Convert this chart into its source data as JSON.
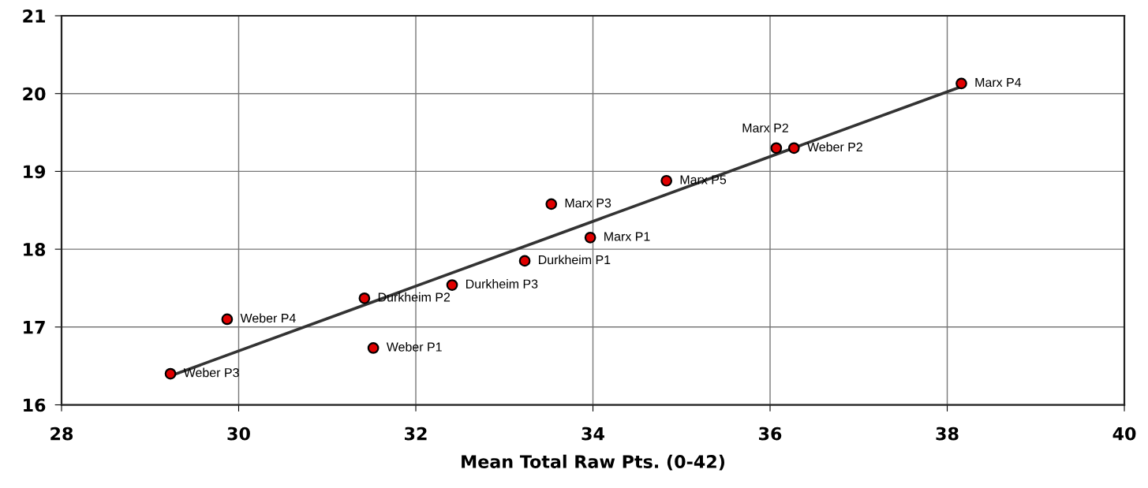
{
  "chart_data": {
    "type": "scatter",
    "xlabel": "Mean Total Raw Pts. (0-42)",
    "xlim": [
      28,
      40
    ],
    "xticks": [
      28,
      30,
      32,
      34,
      36,
      38,
      40
    ],
    "ylim": [
      16,
      21
    ],
    "yticks": [
      16,
      17,
      18,
      19,
      20,
      21
    ],
    "grid": true,
    "legend": false,
    "marker": "circle",
    "series": [
      {
        "color": "#e00000",
        "x": [
          29.23,
          29.87,
          31.42,
          31.52,
          32.41,
          33.23,
          33.53,
          33.97,
          34.83,
          36.07,
          36.27,
          38.16
        ],
        "values": [
          16.4,
          17.1,
          17.37,
          16.73,
          17.54,
          17.85,
          18.58,
          18.15,
          18.88,
          19.3,
          19.3,
          20.13
        ]
      },
      {
        "type": "line",
        "color": "#333333",
        "x": [
          29.25,
          38.16
        ],
        "values": [
          16.38,
          20.09
        ],
        "line_style": "solid",
        "marker": "none"
      }
    ],
    "annotations": [
      {
        "text": "Weber P3",
        "x": 29.23,
        "y": 16.4
      },
      {
        "text": "Weber P4",
        "x": 29.87,
        "y": 17.1
      },
      {
        "text": "Durkheim P2",
        "x": 31.42,
        "y": 17.37
      },
      {
        "text": "Weber P1",
        "x": 31.52,
        "y": 16.73
      },
      {
        "text": "Durkheim P3",
        "x": 32.41,
        "y": 17.54
      },
      {
        "text": "Durkheim P1",
        "x": 33.23,
        "y": 17.85
      },
      {
        "text": "Marx P3",
        "x": 33.53,
        "y": 18.58
      },
      {
        "text": "Marx P1",
        "x": 33.97,
        "y": 18.15
      },
      {
        "text": "Marx P5",
        "x": 34.83,
        "y": 18.88
      },
      {
        "text": "Marx P2",
        "x": 36.07,
        "y": 19.3
      },
      {
        "text": "Weber P2",
        "x": 36.27,
        "y": 19.3
      },
      {
        "text": "Marx P4",
        "x": 38.16,
        "y": 20.13
      }
    ]
  }
}
